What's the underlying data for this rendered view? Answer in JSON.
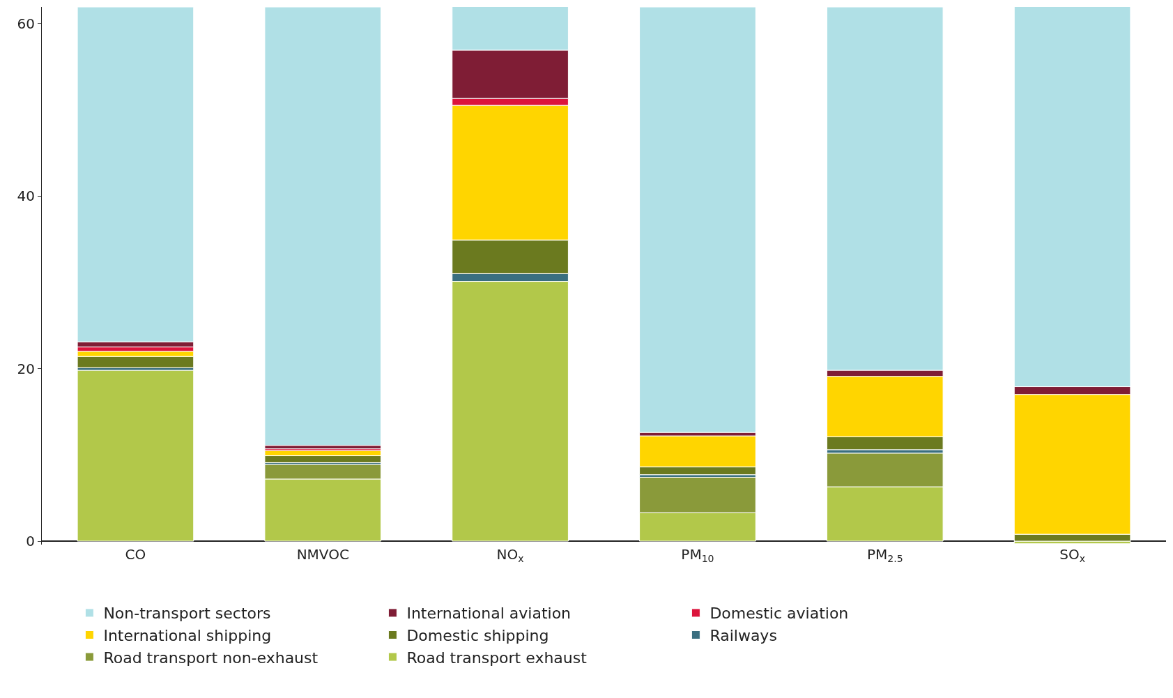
{
  "chart_data": {
    "type": "bar",
    "stacked": true,
    "categories": [
      "CO",
      "NMVOC",
      "NO$_{x}$",
      "PM$_{10}$",
      "PM$_{2.5}$",
      "SO$_{x}$"
    ],
    "series": [
      {
        "name": "Road transport exhaust",
        "color": "#b2c84a",
        "values": [
          19.8,
          7.2,
          30.1,
          3.3,
          6.3,
          -0.3
        ]
      },
      {
        "name": "Road transport non-exhaust",
        "color": "#8a9a3a",
        "values": [
          null,
          1.7,
          null,
          4.1,
          3.9,
          null
        ]
      },
      {
        "name": "Railways",
        "color": "#3a6f80",
        "values": [
          0.3,
          0.2,
          0.9,
          0.3,
          0.4,
          null
        ]
      },
      {
        "name": "Domestic shipping",
        "color": "#6b7a1f",
        "values": [
          1.3,
          0.8,
          3.9,
          0.9,
          1.5,
          0.8
        ]
      },
      {
        "name": "International shipping",
        "color": "#ffd500",
        "values": [
          0.6,
          0.6,
          15.6,
          3.6,
          7.0,
          16.2
        ]
      },
      {
        "name": "Domestic aviation",
        "color": "#dc143c",
        "values": [
          0.5,
          0.2,
          0.8,
          null,
          null,
          null
        ]
      },
      {
        "name": "International aviation",
        "color": "#7f1d35",
        "values": [
          0.6,
          0.4,
          5.6,
          0.4,
          0.7,
          0.9
        ]
      },
      {
        "name": "Non-transport sectors",
        "color": "#b0e0e6",
        "values": [
          38.8,
          50.8,
          5.1,
          49.3,
          42.1,
          44.1
        ]
      }
    ],
    "ylim": [
      -0.4,
      61.9
    ],
    "yticks": [
      0,
      20,
      40,
      60
    ],
    "legend": "bottom"
  }
}
